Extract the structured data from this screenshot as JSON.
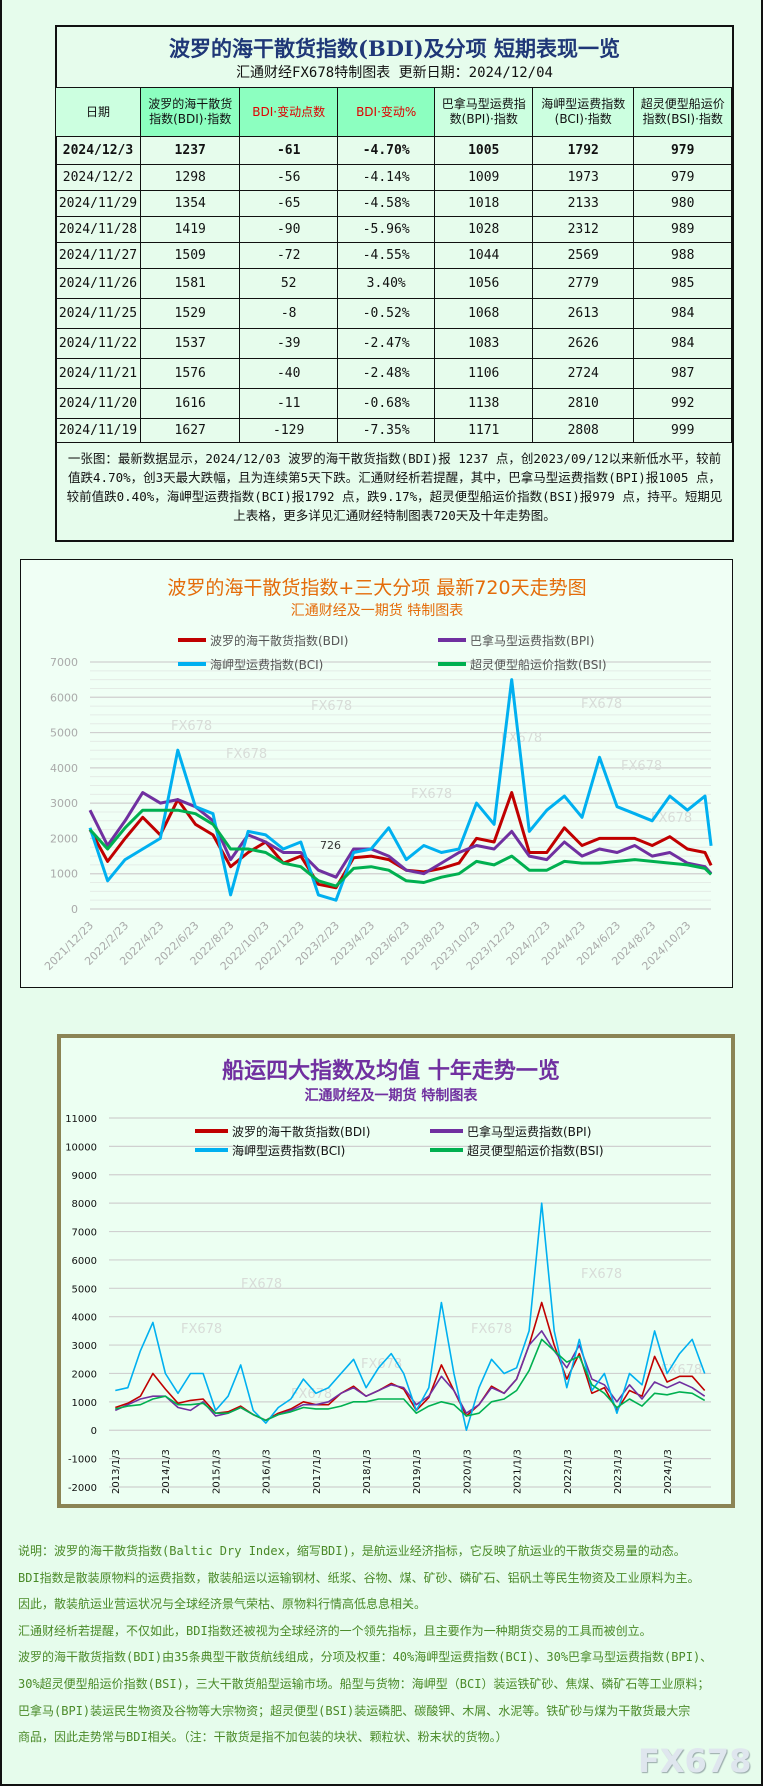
{
  "summary_table": {
    "title": "波罗的海干散货指数(BDI)及分项 短期表现一览",
    "subtitle": "汇通财经FX678特制图表    更新日期：2024/12/04",
    "headers": [
      "日期",
      "波罗的海干散货指数(BDI)·指数",
      "BDI·变动点数",
      "BDI·变动%",
      "巴拿马型运费指数(BPI)·指数",
      "海岬型运费指数(BCI)·指数",
      "超灵便型船运价指数(BSI)·指数"
    ],
    "rows": [
      [
        "2024/12/3",
        "1237",
        "-61",
        "-4.70%",
        "1005",
        "1792",
        "979"
      ],
      [
        "2024/12/2",
        "1298",
        "-56",
        "-4.14%",
        "1009",
        "1973",
        "979"
      ],
      [
        "2024/11/29",
        "1354",
        "-65",
        "-4.58%",
        "1018",
        "2133",
        "980"
      ],
      [
        "2024/11/28",
        "1419",
        "-90",
        "-5.96%",
        "1028",
        "2312",
        "989"
      ],
      [
        "2024/11/27",
        "1509",
        "-72",
        "-4.55%",
        "1044",
        "2569",
        "988"
      ],
      [
        "2024/11/26",
        "1581",
        "52",
        "3.40%",
        "1056",
        "2779",
        "985"
      ],
      [
        "2024/11/25",
        "1529",
        "-8",
        "-0.52%",
        "1068",
        "2613",
        "984"
      ],
      [
        "2024/11/22",
        "1537",
        "-39",
        "-2.47%",
        "1083",
        "2626",
        "984"
      ],
      [
        "2024/11/21",
        "1576",
        "-40",
        "-2.48%",
        "1106",
        "2724",
        "987"
      ],
      [
        "2024/11/20",
        "1616",
        "-11",
        "-0.68%",
        "1138",
        "2810",
        "992"
      ],
      [
        "2024/11/19",
        "1627",
        "-129",
        "-7.35%",
        "1171",
        "2808",
        "999"
      ]
    ],
    "description": "一张图：最新数据显示，2024/12/03 波罗的海干散货指数(BDI)报 1237 点，创2023/09/12以来新低水平，较前值跌4.70%，创3天最大跌幅，且为连续第5天下跌。汇通财经析若提醒，其中，巴拿马型运费指数(BPI)报1005 点，较前值跌0.40%，海岬型运费指数(BCI)报1792 点，跌9.17%，超灵便型船运价指数(BSI)报979 点，持平。短期见上表格，更多详见汇通财经特制图表720天及十年走势图。"
  },
  "chart_data": [
    {
      "type": "line",
      "title": "波罗的海干散货指数+三大分项  最新720天走势图",
      "subtitle": "汇通财经及一期货  特制图表",
      "ylim": [
        0,
        7000
      ],
      "yticks": [
        "0",
        "1000",
        "2000",
        "3000",
        "4000",
        "5000",
        "6000",
        "7000"
      ],
      "xticks": [
        "2021/12/23",
        "2022/2/23",
        "2022/4/23",
        "2022/6/23",
        "2022/8/23",
        "2022/10/23",
        "2022/12/23",
        "2023/2/23",
        "2023/4/23",
        "2023/6/23",
        "2023/8/23",
        "2023/10/23",
        "2023/12/23",
        "2024/2/23",
        "2024/4/23",
        "2024/6/23",
        "2024/8/23",
        "2024/10/23"
      ],
      "x": [
        "2021/12",
        "2022/1",
        "2022/2",
        "2022/3",
        "2022/4",
        "2022/5",
        "2022/6",
        "2022/7",
        "2022/8",
        "2022/9",
        "2022/10",
        "2022/11",
        "2022/12",
        "2023/1",
        "2023/2",
        "2023/3",
        "2023/4",
        "2023/5",
        "2023/6",
        "2023/7",
        "2023/8",
        "2023/9",
        "2023/10",
        "2023/11",
        "2023/12",
        "2024/1",
        "2024/2",
        "2024/3",
        "2024/4",
        "2024/5",
        "2024/6",
        "2024/7",
        "2024/8",
        "2024/9",
        "2024/10",
        "2024/11",
        "2024/12"
      ],
      "grid": true,
      "legend": "top",
      "annotations": [
        "726"
      ],
      "watermark": "FX678",
      "series": [
        {
          "name": "波罗的海干散货指数(BDI)",
          "color": "#c00000",
          "values": [
            2250,
            1350,
            2000,
            2600,
            2100,
            3100,
            2400,
            2100,
            1200,
            1600,
            1900,
            1300,
            1500,
            700,
            600,
            1450,
            1500,
            1400,
            1100,
            1050,
            1150,
            1300,
            2000,
            1900,
            3300,
            1600,
            1600,
            2300,
            1800,
            2000,
            2000,
            2000,
            1800,
            2050,
            1700,
            1600,
            1237
          ]
        },
        {
          "name": "巴拿马型运费指数(BPI)",
          "color": "#7030a0",
          "values": [
            2800,
            1800,
            2500,
            3300,
            3000,
            3100,
            2900,
            2500,
            1400,
            2100,
            1900,
            1600,
            1600,
            1100,
            900,
            1700,
            1700,
            1500,
            1100,
            1000,
            1300,
            1600,
            1800,
            1700,
            2200,
            1500,
            1400,
            1900,
            1500,
            1700,
            1600,
            1800,
            1500,
            1600,
            1300,
            1200,
            1005
          ]
        },
        {
          "name": "海岬型运费指数(BCI)",
          "color": "#00b0f0",
          "values": [
            2300,
            800,
            1400,
            1700,
            2000,
            4500,
            2900,
            2700,
            400,
            2200,
            2100,
            1700,
            1900,
            400,
            250,
            1600,
            1700,
            2300,
            1400,
            1800,
            1600,
            1700,
            3000,
            2400,
            6500,
            2200,
            2800,
            3200,
            2600,
            4300,
            2900,
            2700,
            2500,
            3200,
            2800,
            3200,
            1792
          ]
        },
        {
          "name": "超灵便型船运价指数(BSI)",
          "color": "#00b050",
          "values": [
            2250,
            1700,
            2300,
            2800,
            2800,
            2800,
            2700,
            2400,
            1700,
            1700,
            1600,
            1300,
            1200,
            800,
            650,
            1150,
            1200,
            1100,
            800,
            750,
            900,
            1000,
            1350,
            1250,
            1500,
            1100,
            1100,
            1350,
            1300,
            1300,
            1350,
            1400,
            1350,
            1300,
            1250,
            1150,
            979
          ]
        }
      ]
    },
    {
      "type": "line",
      "title": "船运四大指数及均值 十年走势一览",
      "subtitle": "汇通财经及一期货 特制图表",
      "ylim": [
        -2000,
        11000
      ],
      "yticks": [
        "-2000",
        "-1000",
        "0",
        "1000",
        "2000",
        "3000",
        "4000",
        "5000",
        "6000",
        "7000",
        "8000",
        "9000",
        "10000",
        "11000"
      ],
      "xticks": [
        "2013/1/3",
        "2014/1/3",
        "2015/1/3",
        "2016/1/3",
        "2017/1/3",
        "2018/1/3",
        "2019/1/3",
        "2020/1/3",
        "2021/1/3",
        "2022/1/3",
        "2023/1/3",
        "2024/1/3"
      ],
      "x_quarters": "2013Q1-2024Q4",
      "grid": true,
      "legend": "top",
      "watermark": "FX678",
      "series": [
        {
          "name": "波罗的海干散货指数(BDI)",
          "color": "#c00000",
          "values": [
            800,
            950,
            1200,
            2000,
            1450,
            950,
            1050,
            1100,
            600,
            650,
            850,
            550,
            350,
            600,
            750,
            1000,
            900,
            900,
            1300,
            1550,
            1200,
            1400,
            1650,
            1450,
            700,
            1150,
            2300,
            1400,
            500,
            900,
            1550,
            1300,
            1800,
            3000,
            4500,
            3000,
            1800,
            2700,
            1300,
            1500,
            700,
            1400,
            1200,
            2600,
            1700,
            1900,
            1900,
            1400
          ]
        },
        {
          "name": "巴拿马型运费指数(BPI)",
          "color": "#7030a0",
          "values": [
            700,
            900,
            1100,
            1200,
            1200,
            800,
            700,
            1000,
            500,
            600,
            800,
            550,
            350,
            550,
            700,
            900,
            900,
            1000,
            1300,
            1500,
            1200,
            1400,
            1600,
            1500,
            900,
            1200,
            1900,
            1400,
            600,
            900,
            1500,
            1300,
            1800,
            3000,
            3500,
            2800,
            2200,
            3000,
            1800,
            1600,
            1000,
            1600,
            1100,
            1700,
            1500,
            1700,
            1500,
            1200
          ]
        },
        {
          "name": "海岬型运费指数(BCI)",
          "color": "#00b0f0",
          "values": [
            1400,
            1500,
            2800,
            3800,
            2000,
            1300,
            2000,
            2000,
            700,
            1200,
            2300,
            700,
            250,
            800,
            1100,
            1800,
            1300,
            1500,
            2000,
            2500,
            1500,
            2200,
            2700,
            2000,
            700,
            1500,
            4500,
            2000,
            0,
            1500,
            2500,
            2000,
            2200,
            3500,
            8000,
            3500,
            1500,
            3200,
            1400,
            2000,
            600,
            2000,
            1600,
            3500,
            2000,
            2700,
            3200,
            2000
          ]
        },
        {
          "name": "超灵便型船运价指数(BSI)",
          "color": "#00b050",
          "values": [
            750,
            850,
            900,
            1100,
            1200,
            900,
            900,
            950,
            600,
            600,
            800,
            550,
            350,
            550,
            650,
            800,
            750,
            750,
            850,
            1000,
            1000,
            1100,
            1100,
            1100,
            600,
            850,
            1000,
            900,
            500,
            600,
            1000,
            1100,
            1400,
            2100,
            3200,
            2800,
            2400,
            2600,
            1600,
            1300,
            800,
            1100,
            850,
            1300,
            1250,
            1350,
            1300,
            1050
          ]
        }
      ]
    }
  ],
  "notes": [
    "说明：波罗的海干散货指数(Baltic Dry Index，缩写BDI)，是航运业经济指标，它反映了航运业的干散货交易量的动态。",
    "BDI指数是散装原物料的运费指数，散装船运以运输钢材、纸浆、谷物、煤、矿砂、磷矿石、铝矾土等民生物资及工业原料为主。",
    "因此，散装航运业营运状况与全球经济景气荣枯、原物料行情高低息息相关。",
    "汇通财经析若提醒，不仅如此，BDI指数还被视为全球经济的一个领先指标，且主要作为一种期货交易的工具而被创立。",
    "波罗的海干散货指数(BDI)由35条典型干散货航线组成，分项及权重：40%海岬型运费指数(BCI)、30%巴拿马型运费指数(BPI)、",
    "30%超灵便型船运价指数(BSI)，三大干散货船型运输市场。船型与货物：海岬型（BCI）装运铁矿砂、焦煤、磷矿石等工业原料；",
    "巴拿马(BPI)装运民生物资及谷物等大宗物资；超灵便型(BSI)装运磷肥、碳酸钾、木屑、水泥等。铁矿砂与煤为干散货最大宗",
    "商品，因此走势常与BDI相关。（注：干散货是指不加包装的块状、颗粒状、粉末状的货物。）"
  ],
  "watermark": "FX678"
}
